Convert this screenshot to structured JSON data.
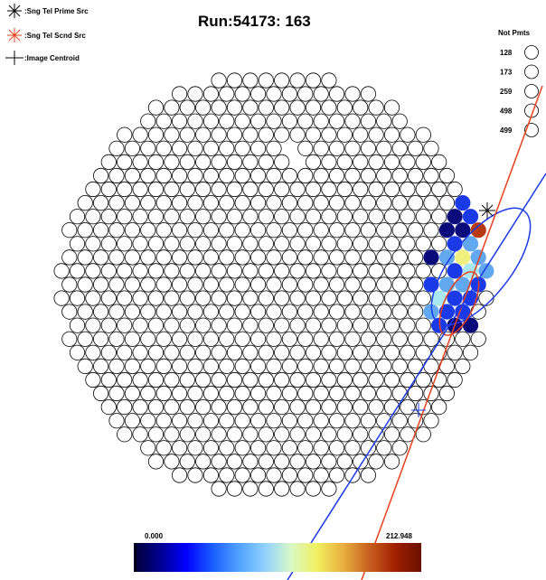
{
  "title": "Run:54173: 163",
  "legend": {
    "items": [
      {
        "label": ":Sng Tel Prime Src",
        "color": "#000000",
        "marker": "asterisk"
      },
      {
        "label": ":Sng Tel Scnd Src",
        "color": "#e8401c",
        "marker": "asterisk"
      },
      {
        "label": ":Image Centroid",
        "color": "#000000",
        "marker": "cross"
      }
    ]
  },
  "not_pmts": {
    "heading": "Not Pmts",
    "ids": [
      "128",
      "173",
      "259",
      "498",
      "499"
    ]
  },
  "color_scale": {
    "min_label": "0.000",
    "max_label": "212.948",
    "stops": [
      "#000033",
      "#00008f",
      "#0000ff",
      "#1a5cff",
      "#4fa0ff",
      "#8fd0ff",
      "#d8f8c8",
      "#f0f060",
      "#e8b040",
      "#c86020",
      "#a02000",
      "#6a1000"
    ]
  },
  "camera": {
    "colors": {
      "lit_dark": "#0a0a7a",
      "lit_mid": "#1a3ae8",
      "lit_light": "#62a8f0",
      "lit_cyan": "#a8e8f0",
      "lit_yellow": "#f0f080",
      "lit_orange": "#e89030",
      "lit_red": "#b83a10",
      "lit_brown": "#701808"
    },
    "lit_pixels": [
      {
        "row": -8,
        "col": 13,
        "level": "lit_mid"
      },
      {
        "row": -7,
        "col": 12,
        "level": "lit_dark"
      },
      {
        "row": -7,
        "col": 13,
        "level": "lit_mid"
      },
      {
        "row": -6,
        "col": 12,
        "level": "lit_mid"
      },
      {
        "row": -6,
        "col": 13,
        "level": "lit_dark"
      },
      {
        "row": -6,
        "col": 14,
        "level": "lit_mid"
      },
      {
        "row": -5,
        "col": 11,
        "level": "lit_dark"
      },
      {
        "row": -5,
        "col": 12,
        "level": "lit_mid"
      },
      {
        "row": -5,
        "col": 13,
        "level": "lit_mid"
      },
      {
        "row": -5,
        "col": 14,
        "level": "lit_brown"
      },
      {
        "row": -4,
        "col": 11,
        "level": "lit_dark"
      },
      {
        "row": -4,
        "col": 12,
        "level": "lit_dark"
      },
      {
        "row": -4,
        "col": 13,
        "level": "lit_red"
      },
      {
        "row": -4,
        "col": 14,
        "level": "lit_orange"
      },
      {
        "row": -3,
        "col": 11,
        "level": "lit_mid"
      },
      {
        "row": -3,
        "col": 12,
        "level": "lit_light"
      },
      {
        "row": -3,
        "col": 13,
        "level": "lit_orange"
      },
      {
        "row": -3,
        "col": 14,
        "level": "lit_yellow"
      },
      {
        "row": -2,
        "col": 10,
        "level": "lit_dark"
      },
      {
        "row": -2,
        "col": 11,
        "level": "lit_light"
      },
      {
        "row": -2,
        "col": 12,
        "level": "lit_yellow"
      },
      {
        "row": -2,
        "col": 13,
        "level": "lit_light"
      },
      {
        "row": -2,
        "col": 14,
        "level": "lit_mid"
      },
      {
        "row": -1,
        "col": 11,
        "level": "lit_mid"
      },
      {
        "row": -1,
        "col": 12,
        "level": "lit_cyan"
      },
      {
        "row": -1,
        "col": 13,
        "level": "lit_light"
      },
      {
        "row": 0,
        "col": 10,
        "level": "lit_mid"
      },
      {
        "row": 0,
        "col": 11,
        "level": "lit_light"
      },
      {
        "row": 0,
        "col": 12,
        "level": "lit_light"
      },
      {
        "row": 0,
        "col": 13,
        "level": "lit_mid"
      },
      {
        "row": 1,
        "col": 10,
        "level": "lit_cyan"
      },
      {
        "row": 1,
        "col": 11,
        "level": "lit_mid"
      },
      {
        "row": 1,
        "col": 12,
        "level": "lit_mid"
      },
      {
        "row": 2,
        "col": 10,
        "level": "lit_light"
      },
      {
        "row": 2,
        "col": 11,
        "level": "lit_mid"
      },
      {
        "row": 2,
        "col": 12,
        "level": "lit_mid"
      },
      {
        "row": 3,
        "col": 10,
        "level": "lit_mid"
      },
      {
        "row": 3,
        "col": 11,
        "level": "lit_dark"
      },
      {
        "row": 3,
        "col": 12,
        "level": "lit_dark"
      }
    ]
  }
}
